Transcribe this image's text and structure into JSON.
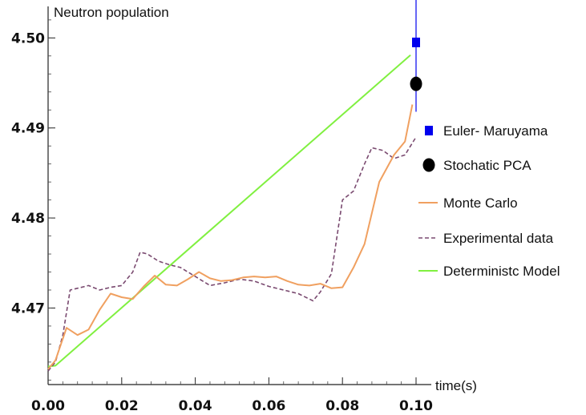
{
  "chart_data": {
    "type": "line",
    "title": "",
    "ylabel": "Neutron population",
    "xlabel": "time(s)",
    "xlim": [
      0.0,
      0.1
    ],
    "ylim": [
      4.4615,
      4.5035
    ],
    "x_ticks": [
      0.0,
      0.02,
      0.04,
      0.06,
      0.08,
      0.1
    ],
    "x_tick_labels": [
      "0.00",
      "0.02",
      "0.04",
      "0.06",
      "0.08",
      "0.10"
    ],
    "y_ticks": [
      4.47,
      4.48,
      4.49,
      4.5
    ],
    "y_tick_labels": [
      "4.47",
      "4.48",
      "4.49",
      "4.50"
    ],
    "grid": false,
    "legend_position": "right",
    "series": [
      {
        "name": "Euler- Maruyama",
        "kind": "point-errorbar",
        "color": "#0000ee",
        "marker": "square",
        "x": [
          0.1
        ],
        "y": [
          4.4995
        ],
        "y_err_low": [
          4.4918
        ],
        "y_err_high": [
          4.5045
        ]
      },
      {
        "name": "Stochatic PCA",
        "kind": "point",
        "color": "#000000",
        "marker": "circle",
        "x": [
          0.1
        ],
        "y": [
          4.4949
        ]
      },
      {
        "name": "Monte Carlo",
        "kind": "line",
        "color": "#f0a060",
        "x": [
          0.0,
          0.002,
          0.005,
          0.008,
          0.011,
          0.014,
          0.017,
          0.02,
          0.023,
          0.026,
          0.029,
          0.032,
          0.035,
          0.038,
          0.041,
          0.044,
          0.047,
          0.05,
          0.053,
          0.056,
          0.059,
          0.062,
          0.065,
          0.068,
          0.071,
          0.074,
          0.077,
          0.08,
          0.083,
          0.086,
          0.09,
          0.094,
          0.097,
          0.099
        ],
        "y": [
          4.4632,
          4.4642,
          4.4678,
          4.467,
          4.4676,
          4.4698,
          4.4716,
          4.4712,
          4.471,
          4.4724,
          4.4736,
          4.4726,
          4.4725,
          4.4732,
          4.474,
          4.4733,
          4.473,
          4.4731,
          4.4734,
          4.4735,
          4.4734,
          4.4735,
          4.473,
          4.4726,
          4.4725,
          4.4727,
          4.4722,
          4.4723,
          4.4745,
          4.4771,
          4.484,
          4.487,
          4.4885,
          4.4926
        ]
      },
      {
        "name": "Experimental data",
        "kind": "dashed-line",
        "color": "#7a4a70",
        "x": [
          0.0,
          0.002,
          0.004,
          0.006,
          0.008,
          0.011,
          0.014,
          0.017,
          0.02,
          0.023,
          0.025,
          0.027,
          0.03,
          0.033,
          0.036,
          0.04,
          0.044,
          0.048,
          0.052,
          0.056,
          0.06,
          0.064,
          0.068,
          0.072,
          0.074,
          0.077,
          0.08,
          0.083,
          0.086,
          0.088,
          0.091,
          0.094,
          0.097,
          0.1
        ],
        "y": [
          4.463,
          4.464,
          4.467,
          4.472,
          4.4722,
          4.4725,
          4.472,
          4.4723,
          4.4725,
          4.474,
          4.4762,
          4.476,
          4.4752,
          4.4748,
          4.4745,
          4.4735,
          4.4725,
          4.4728,
          4.4732,
          4.473,
          4.4724,
          4.472,
          4.4716,
          4.4708,
          4.4718,
          4.4738,
          4.482,
          4.483,
          4.486,
          4.4878,
          4.4875,
          4.4866,
          4.487,
          4.489
        ]
      },
      {
        "name": "Deterministc Model",
        "kind": "line",
        "color": "#80f040",
        "x": [
          0.0,
          0.002,
          0.0985
        ],
        "y": [
          4.4635,
          4.4636,
          4.4981
        ]
      }
    ]
  }
}
